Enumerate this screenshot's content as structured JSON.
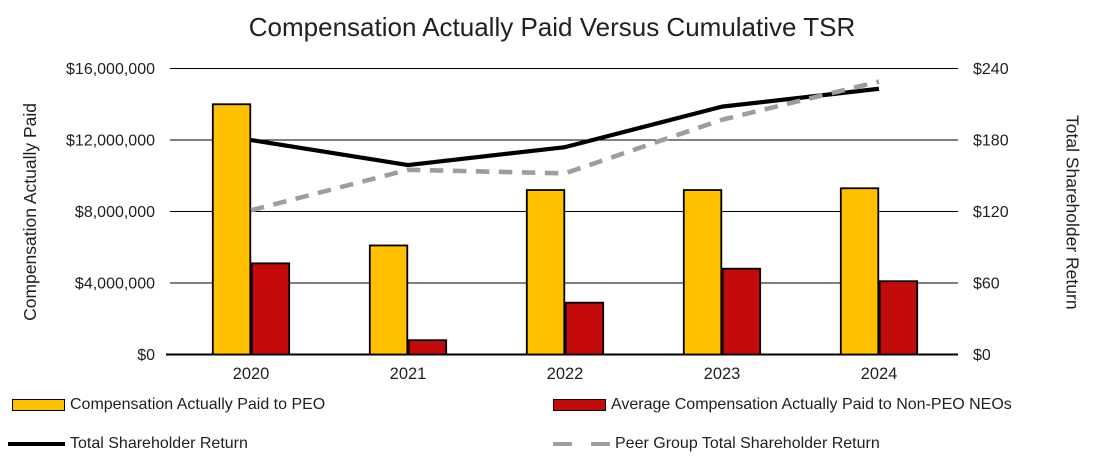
{
  "chart_data": {
    "type": "combo-bar-line",
    "title": "Compensation Actually Paid Versus Cumulative TSR",
    "categories": [
      "2020",
      "2021",
      "2022",
      "2023",
      "2024"
    ],
    "bar_series": [
      {
        "key": "peo",
        "name": "Compensation Actually Paid to PEO",
        "color": "#FFC000",
        "axis": "left",
        "values": [
          14000000,
          6100000,
          9200000,
          9200000,
          9300000
        ]
      },
      {
        "key": "non_peo",
        "name": "Average Compensation Actually Paid to Non-PEO NEOs",
        "color": "#C30B0B",
        "axis": "left",
        "values": [
          5100000,
          800000,
          2900000,
          4800000,
          4100000
        ]
      }
    ],
    "line_series": [
      {
        "key": "tsr",
        "name": "Total Shareholder Return",
        "color": "#000000",
        "style": "solid",
        "axis": "right",
        "values": [
          180,
          159,
          174,
          208,
          223
        ]
      },
      {
        "key": "peer_tsr",
        "name": "Peer Group Total Shareholder Return",
        "color": "#999EA4",
        "style": "dashed",
        "axis": "right",
        "values": [
          121,
          155,
          152,
          197,
          229
        ]
      }
    ],
    "left_axis": {
      "label": "Compensation Actually Paid",
      "min": 0,
      "max": 16000000,
      "ticks": [
        {
          "v": 0,
          "label": "$0"
        },
        {
          "v": 4000000,
          "label": "$4,000,000"
        },
        {
          "v": 8000000,
          "label": "$8,000,000"
        },
        {
          "v": 12000000,
          "label": "$12,000,000"
        },
        {
          "v": 16000000,
          "label": "$16,000,000"
        }
      ]
    },
    "right_axis": {
      "label": "Total Shareholder Return",
      "min": 0,
      "max": 240,
      "ticks": [
        {
          "v": 0,
          "label": "$0"
        },
        {
          "v": 60,
          "label": "$60"
        },
        {
          "v": 120,
          "label": "$120"
        },
        {
          "v": 180,
          "label": "$180"
        },
        {
          "v": 240,
          "label": "$240"
        }
      ]
    },
    "grid": true,
    "legend_position": "bottom"
  }
}
